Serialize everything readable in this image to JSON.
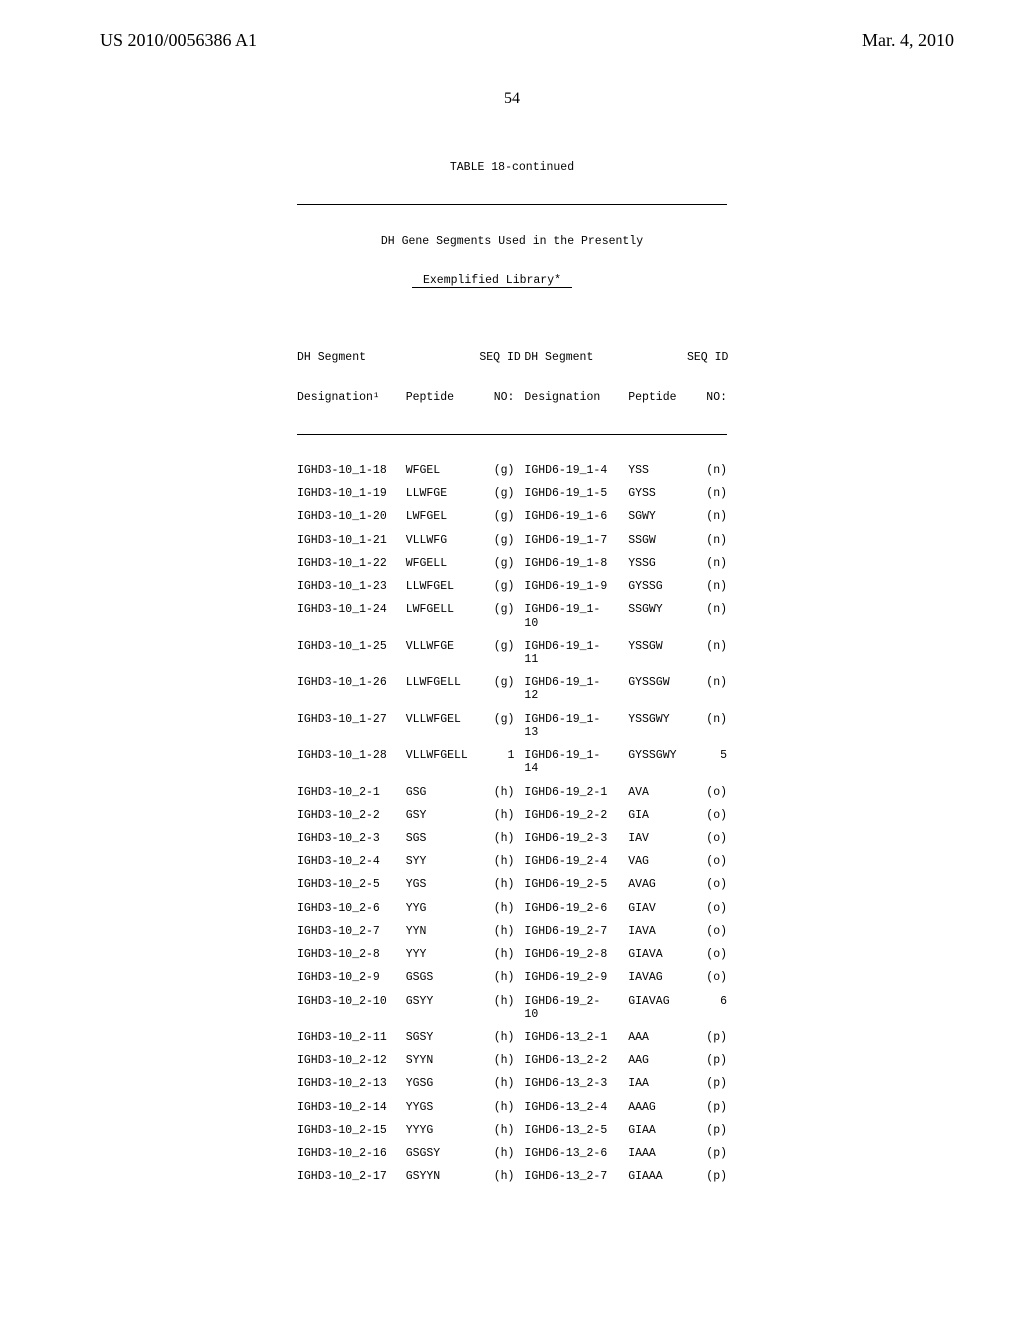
{
  "header": {
    "pub_number": "US 2010/0056386 A1",
    "pub_date": "Mar. 4, 2010",
    "page_number": "54"
  },
  "table": {
    "label": "TABLE 18-continued",
    "caption_l1": "DH Gene Segments Used in the Presently",
    "caption_l2": "Exemplified Library*",
    "col_headers": {
      "c1a": "DH Segment",
      "c1b": "Designation¹",
      "c2": "Peptide",
      "c3a": "SEQ ID",
      "c3b": "NO:",
      "c4a": "DH Segment",
      "c4b": "Designation",
      "c5": "Peptide",
      "c6a": "SEQ ID",
      "c6b": "NO:"
    },
    "rows": [
      {
        "d1": "IGHD3-10_1-18",
        "p1": "WFGEL",
        "s1": "(g)",
        "d2": "IGHD6-19_1-4",
        "p2": "YSS",
        "s2": "(n)"
      },
      {
        "d1": "IGHD3-10_1-19",
        "p1": "LLWFGE",
        "s1": "(g)",
        "d2": "IGHD6-19_1-5",
        "p2": "GYSS",
        "s2": "(n)"
      },
      {
        "d1": "IGHD3-10_1-20",
        "p1": "LWFGEL",
        "s1": "(g)",
        "d2": "IGHD6-19_1-6",
        "p2": "SGWY",
        "s2": "(n)"
      },
      {
        "d1": "IGHD3-10_1-21",
        "p1": "VLLWFG",
        "s1": "(g)",
        "d2": "IGHD6-19_1-7",
        "p2": "SSGW",
        "s2": "(n)"
      },
      {
        "d1": "IGHD3-10_1-22",
        "p1": "WFGELL",
        "s1": "(g)",
        "d2": "IGHD6-19_1-8",
        "p2": "YSSG",
        "s2": "(n)"
      },
      {
        "d1": "IGHD3-10_1-23",
        "p1": "LLWFGEL",
        "s1": "(g)",
        "d2": "IGHD6-19_1-9",
        "p2": "GYSSG",
        "s2": "(n)"
      },
      {
        "d1": "IGHD3-10_1-24",
        "p1": "LWFGELL",
        "s1": "(g)",
        "d2": "IGHD6-19_1-\n10",
        "p2": "SSGWY",
        "s2": "(n)"
      },
      {
        "d1": "IGHD3-10_1-25",
        "p1": "VLLWFGE",
        "s1": "(g)",
        "d2": "IGHD6-19_1-\n11",
        "p2": "YSSGW",
        "s2": "(n)"
      },
      {
        "d1": "IGHD3-10_1-26",
        "p1": "LLWFGELL",
        "s1": "(g)",
        "d2": "IGHD6-19_1-\n12",
        "p2": "GYSSGW",
        "s2": "(n)"
      },
      {
        "d1": "IGHD3-10_1-27",
        "p1": "VLLWFGEL",
        "s1": "(g)",
        "d2": "IGHD6-19_1-\n13",
        "p2": "YSSGWY",
        "s2": "(n)"
      },
      {
        "d1": "IGHD3-10_1-28",
        "p1": "VLLWFGELL",
        "s1": "1",
        "d2": "IGHD6-19_1-\n14",
        "p2": "GYSSGWY",
        "s2": "5"
      },
      {
        "d1": "IGHD3-10_2-1",
        "p1": "GSG",
        "s1": "(h)",
        "d2": "IGHD6-19_2-1",
        "p2": "AVA",
        "s2": "(o)"
      },
      {
        "d1": "IGHD3-10_2-2",
        "p1": "GSY",
        "s1": "(h)",
        "d2": "IGHD6-19_2-2",
        "p2": "GIA",
        "s2": "(o)"
      },
      {
        "d1": "IGHD3-10_2-3",
        "p1": "SGS",
        "s1": "(h)",
        "d2": "IGHD6-19_2-3",
        "p2": "IAV",
        "s2": "(o)"
      },
      {
        "d1": "IGHD3-10_2-4",
        "p1": "SYY",
        "s1": "(h)",
        "d2": "IGHD6-19_2-4",
        "p2": "VAG",
        "s2": "(o)"
      },
      {
        "d1": "IGHD3-10_2-5",
        "p1": "YGS",
        "s1": "(h)",
        "d2": "IGHD6-19_2-5",
        "p2": "AVAG",
        "s2": "(o)"
      },
      {
        "d1": "IGHD3-10_2-6",
        "p1": "YYG",
        "s1": "(h)",
        "d2": "IGHD6-19_2-6",
        "p2": "GIAV",
        "s2": "(o)"
      },
      {
        "d1": "IGHD3-10_2-7",
        "p1": "YYN",
        "s1": "(h)",
        "d2": "IGHD6-19_2-7",
        "p2": "IAVA",
        "s2": "(o)"
      },
      {
        "d1": "IGHD3-10_2-8",
        "p1": "YYY",
        "s1": "(h)",
        "d2": "IGHD6-19_2-8",
        "p2": "GIAVA",
        "s2": "(o)"
      },
      {
        "d1": "IGHD3-10_2-9",
        "p1": "GSGS",
        "s1": "(h)",
        "d2": "IGHD6-19_2-9",
        "p2": "IAVAG",
        "s2": "(o)"
      },
      {
        "d1": "IGHD3-10_2-10",
        "p1": "GSYY",
        "s1": "(h)",
        "d2": "IGHD6-19_2-\n10",
        "p2": "GIAVAG",
        "s2": "6"
      },
      {
        "d1": "IGHD3-10_2-11",
        "p1": "SGSY",
        "s1": "(h)",
        "d2": "IGHD6-13_2-1",
        "p2": "AAA",
        "s2": "(p)"
      },
      {
        "d1": "IGHD3-10_2-12",
        "p1": "SYYN",
        "s1": "(h)",
        "d2": "IGHD6-13_2-2",
        "p2": "AAG",
        "s2": "(p)"
      },
      {
        "d1": "IGHD3-10_2-13",
        "p1": "YGSG",
        "s1": "(h)",
        "d2": "IGHD6-13_2-3",
        "p2": "IAA",
        "s2": "(p)"
      },
      {
        "d1": "IGHD3-10_2-14",
        "p1": "YYGS",
        "s1": "(h)",
        "d2": "IGHD6-13_2-4",
        "p2": "AAAG",
        "s2": "(p)"
      },
      {
        "d1": "IGHD3-10_2-15",
        "p1": "YYYG",
        "s1": "(h)",
        "d2": "IGHD6-13_2-5",
        "p2": "GIAA",
        "s2": "(p)"
      },
      {
        "d1": "IGHD3-10_2-16",
        "p1": "GSGSY",
        "s1": "(h)",
        "d2": "IGHD6-13_2-6",
        "p2": "IAAA",
        "s2": "(p)"
      },
      {
        "d1": "IGHD3-10_2-17",
        "p1": "GSYYN",
        "s1": "(h)",
        "d2": "IGHD6-13_2-7",
        "p2": "GIAAA",
        "s2": "(p)"
      }
    ]
  }
}
